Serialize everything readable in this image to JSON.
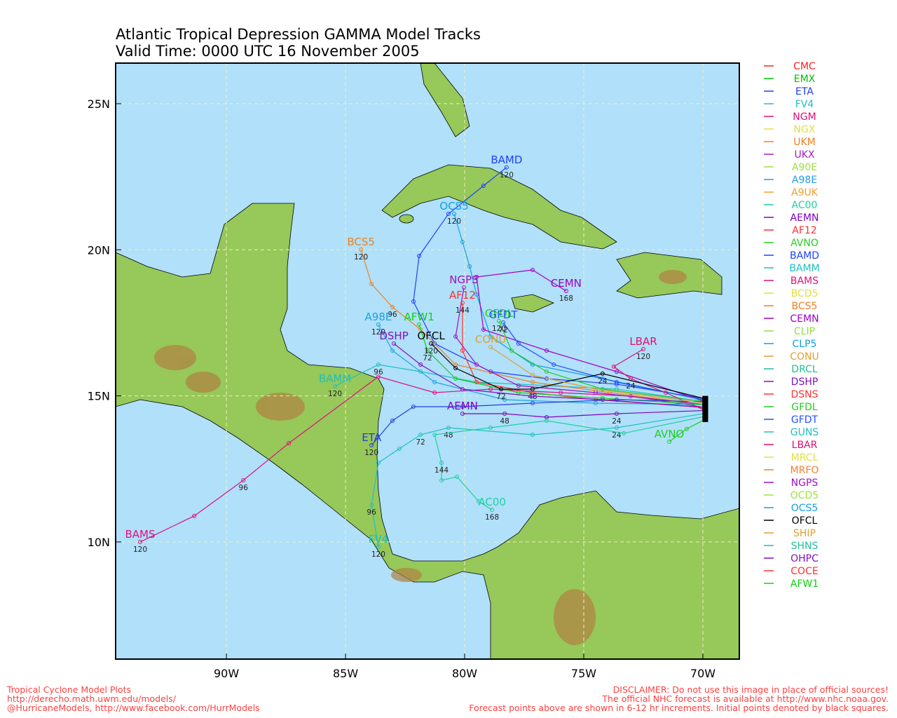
{
  "title": [
    "Atlantic Tropical Depression GAMMA Model Tracks",
    "Valid Time: 0000 UTC 16 November 2005"
  ],
  "map": {
    "lonlim": [
      -94.65,
      -68.47
    ],
    "latlim": [
      5.99,
      26.39
    ],
    "grid": true,
    "xticks": [
      {
        "value": -90,
        "label": "90W"
      },
      {
        "value": -85,
        "label": "85W"
      },
      {
        "value": -80,
        "label": "80W"
      },
      {
        "value": -75,
        "label": "75W"
      },
      {
        "value": -70,
        "label": "70W"
      }
    ],
    "yticks": [
      {
        "value": 10,
        "label": "10N"
      },
      {
        "value": 15,
        "label": "15N"
      },
      {
        "value": 20,
        "label": "20N"
      },
      {
        "value": 25,
        "label": "25N"
      }
    ]
  },
  "legend": [
    {
      "name": "CMC",
      "color": "#ff2020"
    },
    {
      "name": "EMX",
      "color": "#00c000"
    },
    {
      "name": "ETA",
      "color": "#2040e0"
    },
    {
      "name": "FV4",
      "color": "#20c0c0"
    },
    {
      "name": "NGM",
      "color": "#e0107a"
    },
    {
      "name": "NGX",
      "color": "#e0e040"
    },
    {
      "name": "UKM",
      "color": "#f08020"
    },
    {
      "name": "UKX",
      "color": "#a020c0"
    },
    {
      "name": "A90E",
      "color": "#a0e040"
    },
    {
      "name": "A98E",
      "color": "#20a0e0"
    },
    {
      "name": "A9UK",
      "color": "#f0a030"
    },
    {
      "name": "AC00",
      "color": "#20d0a0"
    },
    {
      "name": "AEMN",
      "color": "#8000c0"
    },
    {
      "name": "AF12",
      "color": "#ff3030"
    },
    {
      "name": "AVNO",
      "color": "#20d020"
    },
    {
      "name": "BAMD",
      "color": "#2040ff"
    },
    {
      "name": "BAMM",
      "color": "#20c0c0"
    },
    {
      "name": "BAMS",
      "color": "#e01080"
    },
    {
      "name": "BCD5",
      "color": "#e0e040"
    },
    {
      "name": "BCS5",
      "color": "#f08020"
    },
    {
      "name": "CEMN",
      "color": "#a000c0"
    },
    {
      "name": "CLIP",
      "color": "#90e040"
    },
    {
      "name": "CLP5",
      "color": "#10a0e0"
    },
    {
      "name": "CONU",
      "color": "#e0a030"
    },
    {
      "name": "DRCL",
      "color": "#20c090"
    },
    {
      "name": "DSHP",
      "color": "#8010c0"
    },
    {
      "name": "DSNS",
      "color": "#ff3030"
    },
    {
      "name": "GFDL",
      "color": "#20d020"
    },
    {
      "name": "GFDT",
      "color": "#2050ff"
    },
    {
      "name": "GUNS",
      "color": "#20c0c0"
    },
    {
      "name": "LBAR",
      "color": "#e01070"
    },
    {
      "name": "MRCL",
      "color": "#e0e040"
    },
    {
      "name": "MRFO",
      "color": "#f08030"
    },
    {
      "name": "NGPS",
      "color": "#a010c0"
    },
    {
      "name": "OCD5",
      "color": "#a0e040"
    },
    {
      "name": "OCS5",
      "color": "#10a0e0"
    },
    {
      "name": "OFCL",
      "color": "#000000"
    },
    {
      "name": "SHIP",
      "color": "#e0a030"
    },
    {
      "name": "SHNS",
      "color": "#20c0a0"
    },
    {
      "name": "OHPC",
      "color": "#8010c0"
    },
    {
      "name": "COCE",
      "color": "#ff3030"
    },
    {
      "name": "AFW1",
      "color": "#10d010"
    }
  ],
  "tracks": [
    {
      "name": "BAMD",
      "color": "#2040ff",
      "lon": [
        -69.9,
        -73.62,
        -76.56,
        -78.91,
        -81.26,
        -82.15,
        -81.91,
        -80.68,
        -79.21,
        -78.24
      ],
      "lat": [
        14.9,
        15.4,
        15.59,
        15.83,
        16.79,
        18.23,
        19.79,
        21.23,
        22.19,
        22.82
      ],
      "hours": [
        null,
        null,
        null,
        null,
        null,
        null,
        null,
        null,
        null,
        120
      ]
    },
    {
      "name": "BAMS",
      "color": "#e01080",
      "lon": [
        -69.9,
        -73.03,
        -75.97,
        -78.91,
        -81.26,
        -83.62,
        -87.38,
        -89.29,
        -91.35,
        -93.62
      ],
      "lat": [
        14.6,
        14.99,
        15.11,
        15.23,
        15.11,
        15.66,
        13.38,
        12.11,
        10.89,
        10.0
      ],
      "hours": [
        null,
        null,
        null,
        null,
        null,
        null,
        null,
        96,
        null,
        120
      ]
    },
    {
      "name": "BAMM",
      "color": "#20c0c0",
      "lon": [
        -69.9,
        -73.62,
        -76.56,
        -79.5,
        -81.85,
        -83.62,
        -85.44
      ],
      "lat": [
        14.8,
        15.23,
        15.35,
        15.47,
        15.83,
        16.07,
        15.33
      ],
      "hours": [
        null,
        null,
        null,
        null,
        null,
        96,
        120
      ]
    },
    {
      "name": "BCS5",
      "color": "#f08020",
      "lon": [
        -69.9,
        -73.91,
        -77.15,
        -80.38,
        -81.85,
        -83.03,
        -83.91,
        -84.35
      ],
      "lat": [
        14.7,
        15.11,
        15.47,
        16.07,
        17.27,
        18.04,
        18.83,
        20.01
      ],
      "hours": [
        null,
        null,
        null,
        null,
        null,
        96,
        null,
        120
      ]
    },
    {
      "name": "OCS5",
      "color": "#10a0e0",
      "lon": [
        -69.9,
        -74.21,
        -77.15,
        -78.91,
        -79.5,
        -79.79,
        -80.09,
        -80.44
      ],
      "lat": [
        14.85,
        15.59,
        16.07,
        17.03,
        18.47,
        19.43,
        20.27,
        21.23
      ],
      "hours": [
        null,
        null,
        null,
        null,
        null,
        null,
        null,
        120
      ]
    },
    {
      "name": "CEMN",
      "color": "#a000c0",
      "lon": [
        -69.9,
        -73.62,
        -76.56,
        -79.21,
        -79.5,
        -77.15,
        -75.74
      ],
      "lat": [
        14.8,
        15.83,
        16.55,
        17.27,
        19.07,
        19.31,
        18.59
      ],
      "hours": [
        null,
        null,
        null,
        null,
        null,
        null,
        168
      ]
    },
    {
      "name": "NGPS",
      "color": "#a010c0",
      "lon": [
        -69.9,
        -74.5,
        -77.74,
        -79.5,
        -80.38,
        -80.03
      ],
      "lat": [
        14.7,
        15.11,
        15.35,
        16.07,
        17.03,
        18.71
      ],
      "hours": [
        null,
        null,
        null,
        null,
        null,
        null
      ]
    },
    {
      "name": "AF12",
      "color": "#ff3030",
      "lon": [
        -69.9,
        -74.5,
        -77.15,
        -79.5,
        -80.09,
        -80.09
      ],
      "lat": [
        14.6,
        14.87,
        15.11,
        15.47,
        16.55,
        18.18
      ],
      "hours": [
        null,
        null,
        null,
        null,
        null,
        144
      ]
    },
    {
      "name": "GFDL",
      "color": "#20d020",
      "lon": [
        -69.9,
        -74.21,
        -76.56,
        -78.03,
        -78.56
      ],
      "lat": [
        14.8,
        15.23,
        15.83,
        16.55,
        17.56
      ],
      "hours": [
        null,
        null,
        null,
        null,
        120
      ]
    },
    {
      "name": "GFDT",
      "color": "#2050ff",
      "lon": [
        -69.9,
        -73.62,
        -76.26,
        -77.74,
        -78.38
      ],
      "lat": [
        14.85,
        15.47,
        16.07,
        16.79,
        17.51
      ],
      "hours": [
        null,
        null,
        null,
        null,
        72
      ]
    },
    {
      "name": "LBAR",
      "color": "#e01070",
      "lon": [
        -69.9,
        -71.56,
        -73.03,
        -73.74,
        -72.5
      ],
      "lat": [
        14.5,
        15.11,
        15.59,
        16.0,
        16.6
      ],
      "hours": [
        null,
        null,
        24,
        null,
        120
      ]
    },
    {
      "name": "A98E",
      "color": "#20a0e0",
      "lon": [
        -69.9,
        -74.5,
        -78.32,
        -81.26,
        -83.03,
        -83.62
      ],
      "lat": [
        14.7,
        14.75,
        14.87,
        15.47,
        16.55,
        17.44
      ],
      "hours": [
        null,
        null,
        null,
        null,
        null,
        120
      ]
    },
    {
      "name": "AFW1",
      "color": "#10d010",
      "lon": [
        -69.9,
        -74.21,
        -77.74,
        -80.38,
        -81.56,
        -81.91
      ],
      "lat": [
        14.7,
        14.92,
        15.11,
        15.59,
        16.55,
        17.44
      ],
      "hours": [
        null,
        null,
        null,
        null,
        72,
        null
      ]
    },
    {
      "name": "ETA",
      "color": "#2040e0",
      "lon": [
        -69.9,
        -73.62,
        -77.15,
        -80.09,
        -82.15,
        -83.03,
        -83.91
      ],
      "lat": [
        14.8,
        14.87,
        14.75,
        14.63,
        14.63,
        14.15,
        13.31
      ],
      "hours": [
        null,
        null,
        null,
        null,
        null,
        null,
        120
      ]
    },
    {
      "name": "FV4",
      "color": "#20c0c0",
      "lon": [
        -69.9,
        -73.62,
        -77.15,
        -80.68,
        -81.85,
        -82.74,
        -83.62,
        -83.91,
        -83.62
      ],
      "lat": [
        14.4,
        13.91,
        13.67,
        13.91,
        13.67,
        13.19,
        12.71,
        11.27,
        9.83
      ],
      "hours": [
        null,
        24,
        null,
        48,
        72,
        null,
        null,
        96,
        120
      ]
    },
    {
      "name": "AC00",
      "color": "#20d0a0",
      "lon": [
        -69.9,
        -73.32,
        -76.56,
        -78.91,
        -81.26,
        -80.97,
        -80.97,
        -80.32,
        -79.41,
        -78.85
      ],
      "lat": [
        14.3,
        13.72,
        14.15,
        13.91,
        13.67,
        12.71,
        12.11,
        12.23,
        11.39,
        11.1
      ],
      "hours": [
        null,
        null,
        null,
        null,
        null,
        144,
        null,
        null,
        null,
        168
      ]
    },
    {
      "name": "AEMN",
      "color": "#8000c0",
      "lon": [
        -69.9,
        -73.62,
        -76.56,
        -78.32,
        -80.09
      ],
      "lat": [
        14.5,
        14.39,
        14.27,
        14.39,
        14.39
      ],
      "hours": [
        null,
        24,
        null,
        48,
        null
      ]
    },
    {
      "name": "AVNO",
      "color": "#20d020",
      "lon": [
        -69.9,
        -70.68,
        -71.41
      ],
      "lat": [
        14.2,
        13.87,
        13.43
      ],
      "hours": [
        null,
        null,
        null
      ]
    },
    {
      "name": "OFCL",
      "color": "#000000",
      "lon": [
        -69.9,
        -74.21,
        -77.15,
        -78.47,
        -80.38,
        -81.41
      ],
      "lat": [
        14.9,
        15.76,
        15.23,
        15.23,
        15.95,
        16.79
      ],
      "hours": [
        null,
        24,
        48,
        72,
        null,
        120
      ]
    },
    {
      "name": "CONU",
      "color": "#e0a030",
      "lon": [
        -69.9,
        -74.5,
        -77.15,
        -78.91
      ],
      "lat": [
        14.75,
        15.23,
        15.71,
        16.67
      ],
      "hours": [
        null,
        null,
        null,
        null
      ]
    },
    {
      "name": "DSHP",
      "color": "#8010c0",
      "lon": [
        -69.9,
        -74.21,
        -77.15,
        -80.09,
        -81.85,
        -82.97
      ],
      "lat": [
        14.6,
        14.87,
        14.99,
        15.23,
        16.07,
        16.79
      ],
      "hours": [
        null,
        null,
        null,
        null,
        null,
        null
      ]
    }
  ],
  "footer": {
    "left": [
      "Tropical Cyclone Model Plots",
      "http://derecho.math.uwm.edu/models/",
      "@HurricaneModels, http://www.facebook.com/HurrModels"
    ],
    "right": [
      "DISCLAIMER: Do not use this image in place of official sources!",
      "The official NHC forecast is available at http://www.nhc.noaa.gov.",
      "Forecast points above are shown in 6-12 hr increments. Initial points denoted by black squares."
    ]
  }
}
